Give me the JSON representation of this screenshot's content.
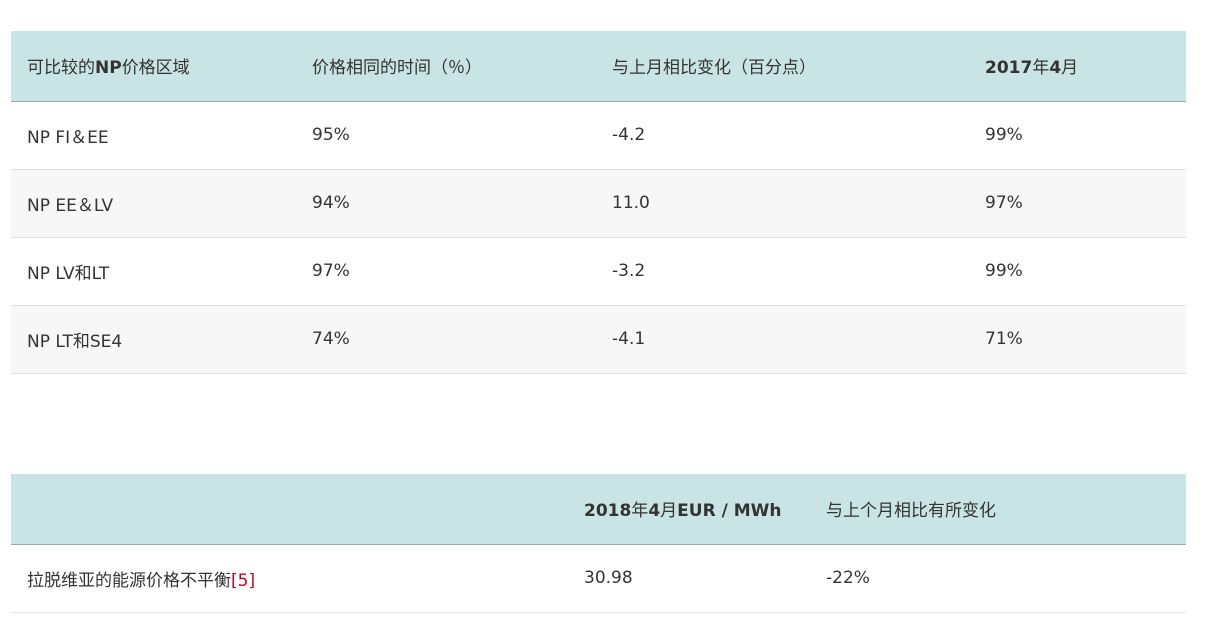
{
  "table1": {
    "headers": [
      {
        "pre": "可比较的",
        "bold": "NP",
        "post": "价格区域"
      },
      {
        "pre": "价格相同的时间（％）",
        "bold": "",
        "post": ""
      },
      {
        "pre": "与上月相比变化（百分点）",
        "bold": "",
        "post": ""
      },
      {
        "pre": "",
        "bold": "2017",
        "post": "年",
        "bold2": "4",
        "post2": "月"
      }
    ],
    "rows": [
      [
        "NP FI＆EE",
        "95%",
        "-4.2",
        "99%"
      ],
      [
        "NP EE＆LV",
        "94%",
        "11.0",
        "97%"
      ],
      [
        "NP LV和LT",
        "97%",
        "-3.2",
        "99%"
      ],
      [
        "NP LT和SE4",
        "74%",
        "-4.1",
        "71%"
      ]
    ]
  },
  "table2": {
    "headers": [
      "",
      {
        "b1": "2018",
        "t1": "年",
        "b2": "4",
        "t2": "月",
        "b3": "EUR / MWh"
      },
      "与上个月相比有所变化"
    ],
    "rows": [
      {
        "label": "拉脱维亚的能源价格不平衡",
        "ref": "[5]",
        "value": "30.98",
        "change": "-22%"
      }
    ]
  },
  "colors": {
    "header_bg": "#c9e4e4",
    "alt_row": "#f7f7f7",
    "ref_link": "#d0021b"
  }
}
